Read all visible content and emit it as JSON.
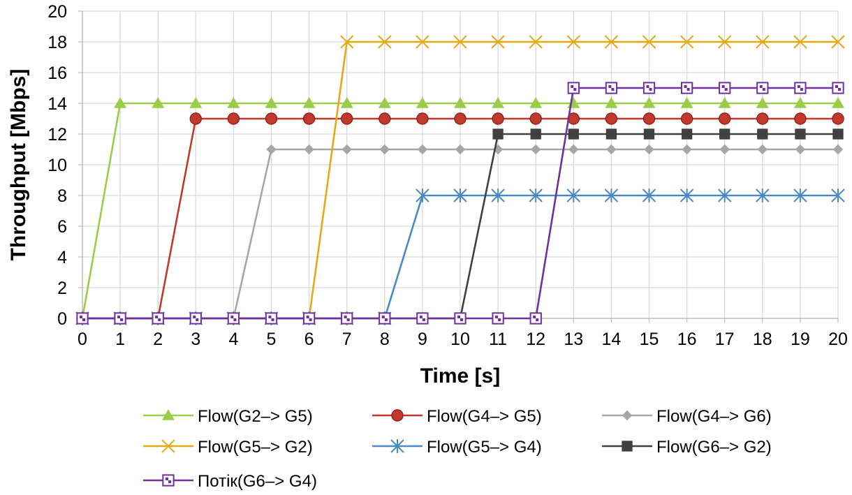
{
  "chart_data": {
    "type": "line",
    "title": "",
    "xlabel": "Time [s]",
    "ylabel": "Throughput [Mbps]",
    "xlim": [
      0,
      20
    ],
    "ylim": [
      0,
      20
    ],
    "x_ticks": [
      "0",
      "1",
      "2",
      "3",
      "4",
      "5",
      "6",
      "7",
      "8",
      "9",
      "10",
      "11",
      "12",
      "13",
      "14",
      "15",
      "16",
      "17",
      "18",
      "19",
      "20"
    ],
    "y_ticks": [
      "0",
      "2",
      "4",
      "6",
      "8",
      "10",
      "12",
      "14",
      "16",
      "18",
      "20"
    ],
    "grid": true,
    "legend_position": "bottom",
    "series": [
      {
        "name": "Flow(G2–> G5)",
        "color": "#9ACD4A",
        "marker": "triangle",
        "x": [
          0,
          1,
          2,
          3,
          4,
          5,
          6,
          7,
          8,
          9,
          10,
          11,
          12,
          13,
          14,
          15,
          16,
          17,
          18,
          19,
          20
        ],
        "y": [
          0,
          14,
          14,
          14,
          14,
          14,
          14,
          14,
          14,
          14,
          14,
          14,
          14,
          14,
          14,
          14,
          14,
          14,
          14,
          14,
          14
        ]
      },
      {
        "name": "Flow(G4–> G5)",
        "color": "#C0392B",
        "marker": "circle",
        "x": [
          0,
          1,
          2,
          3,
          4,
          5,
          6,
          7,
          8,
          9,
          10,
          11,
          12,
          13,
          14,
          15,
          16,
          17,
          18,
          19,
          20
        ],
        "y": [
          0,
          0,
          0,
          13,
          13,
          13,
          13,
          13,
          13,
          13,
          13,
          13,
          13,
          13,
          13,
          13,
          13,
          13,
          13,
          13,
          13
        ]
      },
      {
        "name": "Flow(G4–> G6)",
        "color": "#A6A6A6",
        "marker": "diamond",
        "x": [
          0,
          1,
          2,
          3,
          4,
          5,
          6,
          7,
          8,
          9,
          10,
          11,
          12,
          13,
          14,
          15,
          16,
          17,
          18,
          19,
          20
        ],
        "y": [
          0,
          0,
          0,
          0,
          0,
          11,
          11,
          11,
          11,
          11,
          11,
          11,
          11,
          11,
          11,
          11,
          11,
          11,
          11,
          11,
          11
        ]
      },
      {
        "name": "Flow(G5–> G2)",
        "color": "#E6A817",
        "marker": "x",
        "x": [
          0,
          1,
          2,
          3,
          4,
          5,
          6,
          7,
          8,
          9,
          10,
          11,
          12,
          13,
          14,
          15,
          16,
          17,
          18,
          19,
          20
        ],
        "y": [
          0,
          0,
          0,
          0,
          0,
          0,
          0,
          18,
          18,
          18,
          18,
          18,
          18,
          18,
          18,
          18,
          18,
          18,
          18,
          18,
          18
        ]
      },
      {
        "name": "Flow(G5–> G4)",
        "color": "#4A8AC4",
        "marker": "star",
        "x": [
          0,
          1,
          2,
          3,
          4,
          5,
          6,
          7,
          8,
          9,
          10,
          11,
          12,
          13,
          14,
          15,
          16,
          17,
          18,
          19,
          20
        ],
        "y": [
          0,
          0,
          0,
          0,
          0,
          0,
          0,
          0,
          0,
          8,
          8,
          8,
          8,
          8,
          8,
          8,
          8,
          8,
          8,
          8,
          8
        ]
      },
      {
        "name": "Flow(G6–> G2)",
        "color": "#404040",
        "marker": "square",
        "x": [
          0,
          1,
          2,
          3,
          4,
          5,
          6,
          7,
          8,
          9,
          10,
          11,
          12,
          13,
          14,
          15,
          16,
          17,
          18,
          19,
          20
        ],
        "y": [
          0,
          0,
          0,
          0,
          0,
          0,
          0,
          0,
          0,
          0,
          0,
          12,
          12,
          12,
          12,
          12,
          12,
          12,
          12,
          12,
          12
        ]
      },
      {
        "name": "Потік(G6–> G4)",
        "color": "#7030A0",
        "marker": "hollow-square",
        "x": [
          0,
          1,
          2,
          3,
          4,
          5,
          6,
          7,
          8,
          9,
          10,
          11,
          12,
          13,
          14,
          15,
          16,
          17,
          18,
          19,
          20
        ],
        "y": [
          0,
          0,
          0,
          0,
          0,
          0,
          0,
          0,
          0,
          0,
          0,
          0,
          0,
          15,
          15,
          15,
          15,
          15,
          15,
          15,
          15
        ]
      }
    ]
  }
}
